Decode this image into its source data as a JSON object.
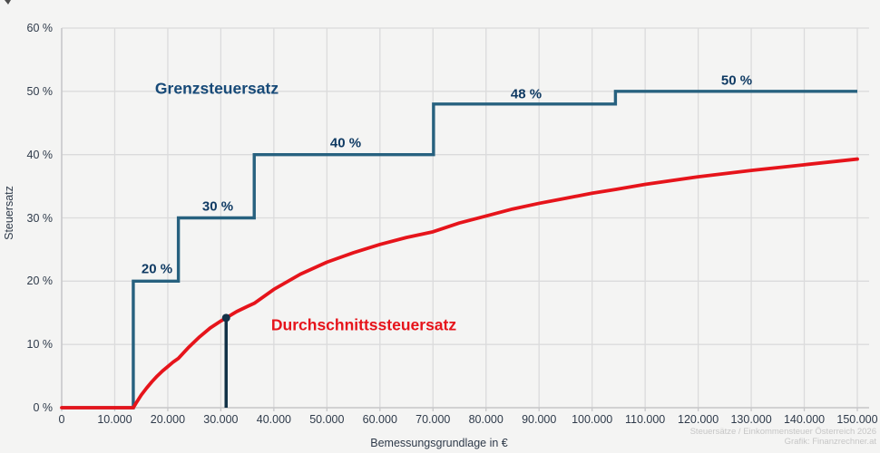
{
  "footer": {
    "line1": "Steuersätze / Einkommensteuer Österreich 2026",
    "line2": "Grafik: Finanzrechner.at"
  },
  "colors": {
    "background": "#f4f4f3",
    "grid": "#dbdbdc",
    "axis": "#c7c7c9",
    "marginal_line": "#27617f",
    "average_line": "#e6141b",
    "marker": "#123147",
    "step_label_text": "#0f3a63",
    "tick_text": "#2e3a4a"
  },
  "chart_data": {
    "type": "line",
    "title": "",
    "xlabel": "Bemessungsgrundlage in €",
    "ylabel": "Steuersatz",
    "xlim": [
      0,
      150000
    ],
    "ylim": [
      0,
      60
    ],
    "grid": true,
    "x_tick_values": [
      0,
      10000,
      20000,
      30000,
      40000,
      50000,
      60000,
      70000,
      80000,
      90000,
      100000,
      110000,
      120000,
      130000,
      140000,
      150000
    ],
    "x_tick_labels": [
      "0",
      "10.000",
      "20.000",
      "30.000",
      "40.000",
      "50.000",
      "60.000",
      "70.000",
      "80.000",
      "90.000",
      "100.000",
      "110.000",
      "120.000",
      "130.000",
      "140.000",
      "150.000"
    ],
    "y_tick_values": [
      0,
      10,
      20,
      30,
      40,
      50,
      60
    ],
    "y_tick_labels": [
      "0 %",
      "10 %",
      "20 %",
      "30 %",
      "40 %",
      "50 %",
      "60 %"
    ],
    "series": [
      {
        "name": "Grenzsteuersatz",
        "type": "step",
        "color": "#27617f",
        "steps": [
          {
            "rate": 0,
            "from": 0,
            "to": 13500
          },
          {
            "rate": 20,
            "from": 13500,
            "to": 22000
          },
          {
            "rate": 30,
            "from": 22000,
            "to": 36300
          },
          {
            "rate": 40,
            "from": 36300,
            "to": 70100
          },
          {
            "rate": 48,
            "from": 70100,
            "to": 104400
          },
          {
            "rate": 50,
            "from": 104400,
            "to": 150000
          }
        ],
        "step_labels": [
          {
            "text": "20 %"
          },
          {
            "text": "30 %"
          },
          {
            "text": "40 %"
          },
          {
            "text": "48 %"
          },
          {
            "text": "50 %"
          }
        ]
      },
      {
        "name": "Durchschnittssteuersatz",
        "type": "line",
        "color": "#e6141b",
        "points": [
          [
            0,
            0
          ],
          [
            13500,
            0
          ],
          [
            14000,
            0.7
          ],
          [
            15000,
            2.0
          ],
          [
            16000,
            3.1
          ],
          [
            17000,
            4.1
          ],
          [
            18000,
            5.0
          ],
          [
            19000,
            5.8
          ],
          [
            20000,
            6.5
          ],
          [
            21000,
            7.2
          ],
          [
            22000,
            7.8
          ],
          [
            24000,
            9.6
          ],
          [
            26000,
            11.2
          ],
          [
            28000,
            12.6
          ],
          [
            30000,
            13.7
          ],
          [
            31000,
            14.2
          ],
          [
            33000,
            15.2
          ],
          [
            35000,
            16.0
          ],
          [
            36300,
            16.5
          ],
          [
            40000,
            18.7
          ],
          [
            45000,
            21.1
          ],
          [
            50000,
            23.0
          ],
          [
            55000,
            24.5
          ],
          [
            60000,
            25.8
          ],
          [
            65000,
            26.9
          ],
          [
            70000,
            27.8
          ],
          [
            75000,
            29.2
          ],
          [
            80000,
            30.3
          ],
          [
            85000,
            31.4
          ],
          [
            90000,
            32.3
          ],
          [
            95000,
            33.1
          ],
          [
            100000,
            33.9
          ],
          [
            104400,
            34.5
          ],
          [
            110000,
            35.3
          ],
          [
            120000,
            36.5
          ],
          [
            130000,
            37.5
          ],
          [
            140000,
            38.4
          ],
          [
            150000,
            39.3
          ]
        ]
      }
    ],
    "marker": {
      "x": 31000,
      "y": 14.2
    }
  }
}
